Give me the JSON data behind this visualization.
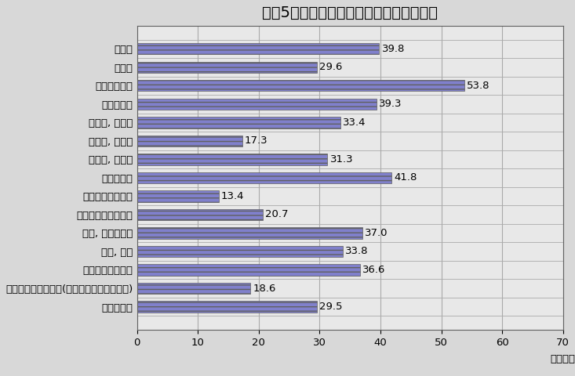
{
  "title": "令和5年の産業別現金給与総額（鳥取県）",
  "categories": [
    "建設業",
    "製造業",
    "電気･ガス業",
    "情報通信業",
    "運輸業, 郵便業",
    "卸売業, 小売業",
    "金融業, 保険業",
    "学術研究等",
    "飲食サービス業等",
    "生活関連サービス等",
    "教育, 学習支援業",
    "医療, 福祉",
    "複合サービス事業",
    "その他のサービス業(他に分類されないもの)",
    "調査産業計"
  ],
  "values": [
    39.8,
    29.6,
    53.8,
    39.3,
    33.4,
    17.3,
    31.3,
    41.8,
    13.4,
    20.7,
    37.0,
    33.8,
    36.6,
    18.6,
    29.5
  ],
  "bar_color": "#8080cc",
  "bar_edge_color": "#606060",
  "background_color": "#d8d8d8",
  "plot_bg_color": "#d8d8d8",
  "inner_bg_color": "#e8e8e8",
  "xlabel": "（万円）",
  "xlim": [
    0,
    70
  ],
  "xticks": [
    0,
    10,
    20,
    30,
    40,
    50,
    60,
    70
  ],
  "title_fontsize": 14,
  "label_fontsize": 9.5,
  "value_fontsize": 9.5,
  "grid_color": "#aaaaaa",
  "grid_lines": [
    10,
    20,
    30,
    40,
    50,
    60,
    70
  ],
  "bar_height": 0.6,
  "row_separator_color": "#aaaaaa"
}
